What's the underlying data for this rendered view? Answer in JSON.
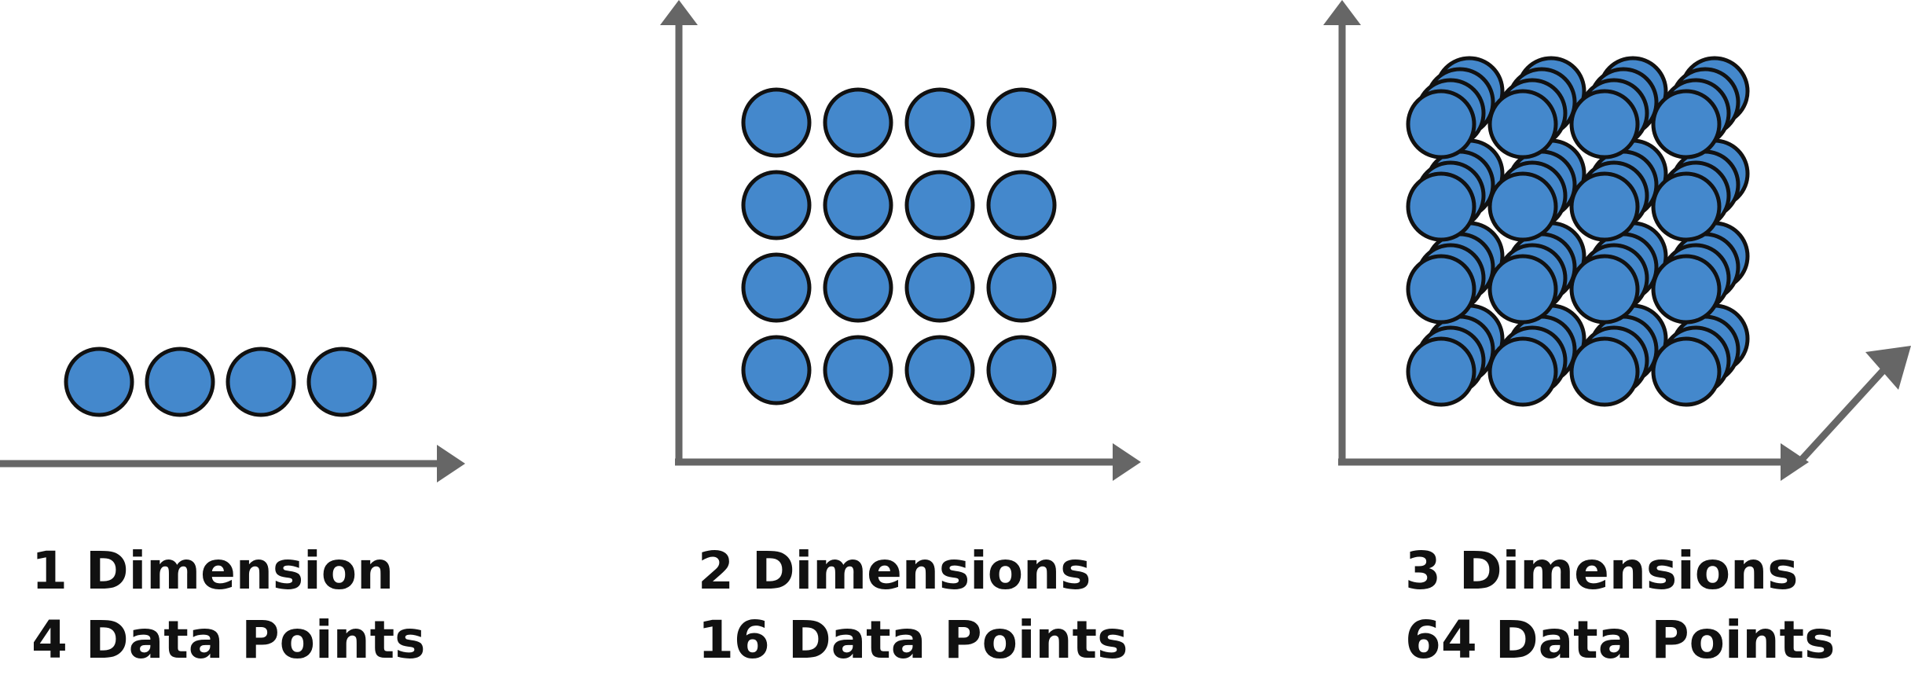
{
  "colors": {
    "point_fill": "#4488CC",
    "point_stroke": "#111111",
    "axis": "#666666",
    "text": "#111111",
    "background": "#ffffff"
  },
  "panels": [
    {
      "dimensions": 1,
      "points_per_axis": 4,
      "total_points": 4,
      "caption_line1": "1 Dimension",
      "caption_line2": "4 Data Points"
    },
    {
      "dimensions": 2,
      "points_per_axis": 4,
      "total_points": 16,
      "caption_line1": "2 Dimensions",
      "caption_line2": "16 Data Points"
    },
    {
      "dimensions": 3,
      "points_per_axis": 4,
      "total_points": 64,
      "caption_line1": "3 Dimensions",
      "caption_line2": "64 Data Points"
    }
  ]
}
